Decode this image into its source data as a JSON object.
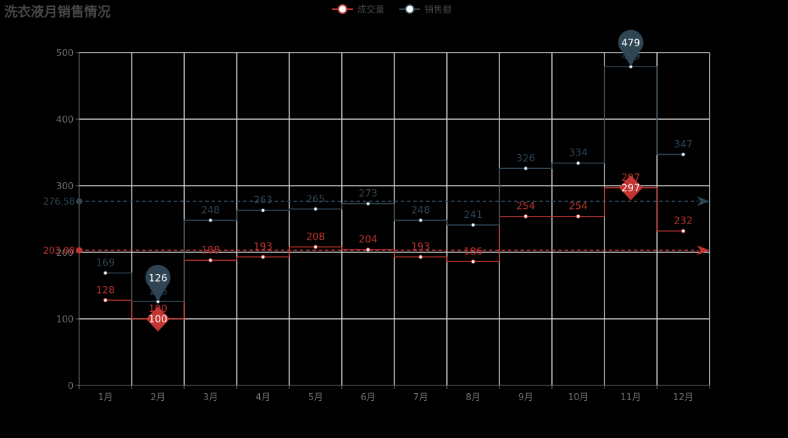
{
  "chart_data": {
    "type": "line",
    "step": true,
    "title": "洗衣液月销售情况",
    "categories": [
      "1月",
      "2月",
      "3月",
      "4月",
      "5月",
      "6月",
      "7月",
      "8月",
      "9月",
      "10月",
      "11月",
      "12月"
    ],
    "ylim": [
      0,
      500
    ],
    "yticks": [
      0,
      100,
      200,
      300,
      400,
      500
    ],
    "grid": true,
    "legend_position": "top-center",
    "series": [
      {
        "name": "成交量",
        "color": "#c23531",
        "values": [
          128,
          100,
          188,
          193,
          208,
          204,
          193,
          186,
          254,
          254,
          297,
          232
        ],
        "average": 203.08,
        "max_point": {
          "label": "297",
          "category": "11月",
          "value": 297
        },
        "min_point": {
          "label": "100",
          "category": "2月",
          "value": 100
        }
      },
      {
        "name": "销售额",
        "color": "#2f4554",
        "values": [
          169,
          126,
          248,
          263,
          265,
          273,
          248,
          241,
          326,
          334,
          479,
          347
        ],
        "average": 276.58,
        "max_point": {
          "label": "479",
          "category": "11月",
          "value": 479
        },
        "min_point": {
          "label": "126",
          "category": "2月",
          "value": 126
        }
      }
    ]
  }
}
